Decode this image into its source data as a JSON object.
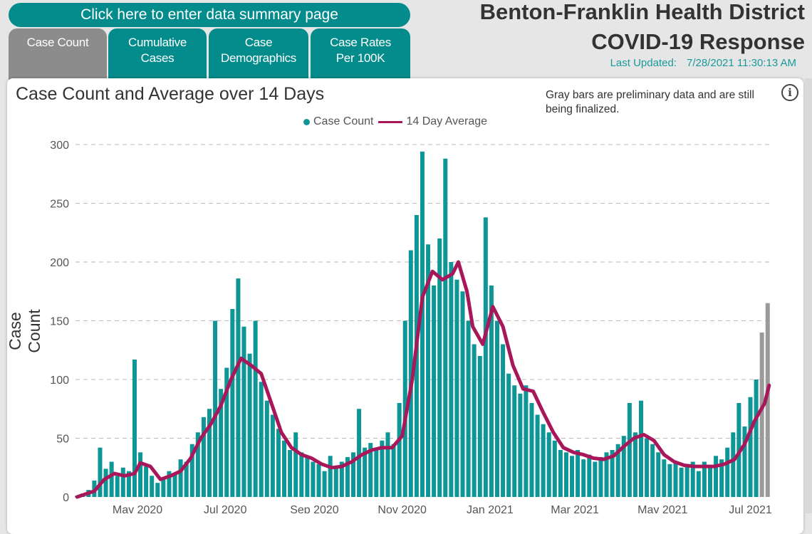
{
  "header": {
    "summary_button": "Click here to enter data summary page",
    "title_line1": "Benton-Franklin Health District",
    "title_line2": "COVID-19 Response",
    "last_updated_label": "Last Updated:",
    "last_updated_value": "7/28/2021 11:30:13 AM"
  },
  "tabs": [
    {
      "line1": "Case Count",
      "line2": "",
      "active": true
    },
    {
      "line1": "Cumulative",
      "line2": "Cases",
      "active": false
    },
    {
      "line1": "Case",
      "line2": "Demographics",
      "active": false
    },
    {
      "line1": "Case Rates",
      "line2": "Per 100K",
      "active": false
    }
  ],
  "note": "Gray bars are preliminary data and are still being finalized.",
  "info_icon": "info-circle-icon",
  "chart_data": {
    "type": "bar+line",
    "title": "Case Count and Average over 14 Days",
    "ylabel": "Case Count",
    "xlabel": "",
    "ylim": [
      0,
      300
    ],
    "yticks": [
      0,
      50,
      100,
      150,
      200,
      250,
      300
    ],
    "xticks": [
      {
        "date": "2020-05-01",
        "label": "May 2020"
      },
      {
        "date": "2020-07-01",
        "label": "Jul 2020"
      },
      {
        "date": "2020-09-01",
        "label": "Sep 2020"
      },
      {
        "date": "2020-11-01",
        "label": "Nov 2020"
      },
      {
        "date": "2021-01-01",
        "label": "Jan 2021"
      },
      {
        "date": "2021-03-01",
        "label": "Mar 2021"
      },
      {
        "date": "2021-05-01",
        "label": "May 2021"
      },
      {
        "date": "2021-07-01",
        "label": "Jul 2021"
      }
    ],
    "grid": "horizontal dashed",
    "legend": {
      "placement": "top",
      "items": [
        {
          "name": "Case Count",
          "color": "#0e9696",
          "marker": "dot"
        },
        {
          "name": "14 Day Average",
          "color": "#a8175a",
          "marker": "line"
        }
      ]
    },
    "colors": {
      "bars": "#0e9696",
      "preliminary_bars": "#9a9a9a",
      "average": "#a8175a"
    },
    "case_count": {
      "start": "2020-03-20",
      "end": "2021-07-13",
      "preliminary_from": "2021-07-09",
      "values": [
        1,
        3,
        6,
        14,
        42,
        24,
        30,
        18,
        25,
        22,
        117,
        38,
        26,
        18,
        12,
        16,
        22,
        20,
        32,
        30,
        45,
        55,
        68,
        75,
        150,
        92,
        110,
        160,
        186,
        145,
        122,
        150,
        98,
        82,
        70,
        58,
        48,
        40,
        55,
        38,
        34,
        30,
        28,
        22,
        35,
        25,
        30,
        34,
        38,
        75,
        42,
        46,
        40,
        48,
        55,
        45,
        80,
        150,
        210,
        240,
        294,
        215,
        180,
        220,
        288,
        200,
        185,
        175,
        150,
        130,
        120,
        238,
        180,
        150,
        130,
        105,
        95,
        88,
        95,
        80,
        70,
        62,
        55,
        48,
        40,
        38,
        35,
        40,
        32,
        36,
        30,
        34,
        38,
        40,
        45,
        52,
        80,
        55,
        82,
        50,
        45,
        38,
        32,
        28,
        30,
        25,
        28,
        30,
        22,
        30,
        25,
        35,
        32,
        42,
        55,
        80,
        60,
        85,
        100,
        140,
        165
      ]
    },
    "average_14_day": [
      [
        "2020-03-20",
        0
      ],
      [
        "2020-04-01",
        5
      ],
      [
        "2020-04-08",
        15
      ],
      [
        "2020-04-15",
        20
      ],
      [
        "2020-04-22",
        18
      ],
      [
        "2020-04-29",
        20
      ],
      [
        "2020-05-03",
        29
      ],
      [
        "2020-05-10",
        26
      ],
      [
        "2020-05-17",
        15
      ],
      [
        "2020-05-24",
        18
      ],
      [
        "2020-05-31",
        22
      ],
      [
        "2020-06-07",
        33
      ],
      [
        "2020-06-14",
        50
      ],
      [
        "2020-06-21",
        62
      ],
      [
        "2020-06-28",
        78
      ],
      [
        "2020-07-05",
        100
      ],
      [
        "2020-07-12",
        118
      ],
      [
        "2020-07-19",
        112
      ],
      [
        "2020-07-26",
        105
      ],
      [
        "2020-08-02",
        80
      ],
      [
        "2020-08-09",
        55
      ],
      [
        "2020-08-16",
        42
      ],
      [
        "2020-08-23",
        36
      ],
      [
        "2020-08-30",
        33
      ],
      [
        "2020-09-06",
        28
      ],
      [
        "2020-09-13",
        25
      ],
      [
        "2020-09-20",
        26
      ],
      [
        "2020-09-27",
        30
      ],
      [
        "2020-10-04",
        36
      ],
      [
        "2020-10-11",
        40
      ],
      [
        "2020-10-18",
        42
      ],
      [
        "2020-10-25",
        42
      ],
      [
        "2020-11-01",
        52
      ],
      [
        "2020-11-08",
        100
      ],
      [
        "2020-11-15",
        170
      ],
      [
        "2020-11-22",
        192
      ],
      [
        "2020-11-29",
        185
      ],
      [
        "2020-12-06",
        190
      ],
      [
        "2020-12-10",
        200
      ],
      [
        "2020-12-16",
        175
      ],
      [
        "2020-12-20",
        145
      ],
      [
        "2020-12-27",
        130
      ],
      [
        "2021-01-03",
        162
      ],
      [
        "2021-01-10",
        145
      ],
      [
        "2021-01-17",
        112
      ],
      [
        "2021-01-24",
        92
      ],
      [
        "2021-01-31",
        90
      ],
      [
        "2021-02-07",
        72
      ],
      [
        "2021-02-14",
        55
      ],
      [
        "2021-02-21",
        42
      ],
      [
        "2021-02-28",
        38
      ],
      [
        "2021-03-07",
        36
      ],
      [
        "2021-03-14",
        33
      ],
      [
        "2021-03-21",
        32
      ],
      [
        "2021-03-28",
        35
      ],
      [
        "2021-04-04",
        43
      ],
      [
        "2021-04-11",
        50
      ],
      [
        "2021-04-18",
        53
      ],
      [
        "2021-04-25",
        48
      ],
      [
        "2021-05-02",
        36
      ],
      [
        "2021-05-09",
        30
      ],
      [
        "2021-05-16",
        27
      ],
      [
        "2021-05-23",
        26
      ],
      [
        "2021-05-30",
        26
      ],
      [
        "2021-06-06",
        26
      ],
      [
        "2021-06-13",
        28
      ],
      [
        "2021-06-20",
        32
      ],
      [
        "2021-06-27",
        45
      ],
      [
        "2021-07-04",
        65
      ],
      [
        "2021-07-11",
        80
      ],
      [
        "2021-07-14",
        95
      ]
    ]
  }
}
